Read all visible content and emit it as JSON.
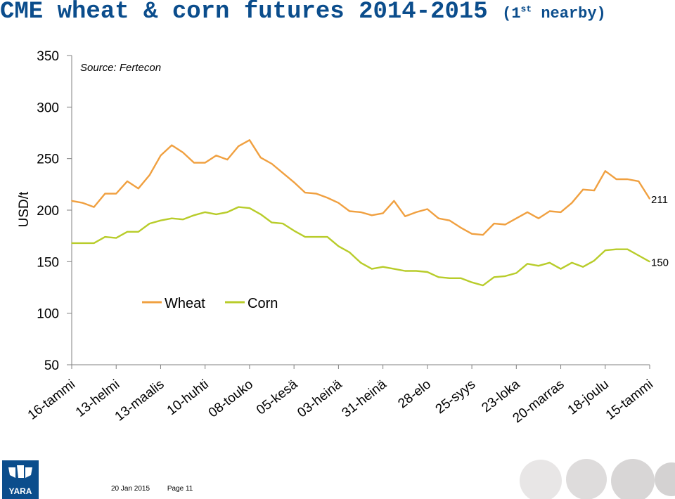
{
  "title": {
    "main": "CME wheat & corn futures 2014-2015",
    "paren_open": "(1",
    "sup": "st",
    "rest": " nearby)"
  },
  "footer": {
    "date": "20 Jan 2015",
    "page": "Page 11"
  },
  "logo": {
    "text": "YARA"
  },
  "colors": {
    "title": "#0b4d8c",
    "wheat": "#f0a040",
    "corn": "#b8cc2a",
    "axis": "#808080"
  },
  "chart_data": {
    "type": "line",
    "ylabel": "USD/t",
    "annotation": "Source: Fertecon",
    "ylim": [
      50,
      350
    ],
    "yticks": [
      50,
      100,
      150,
      200,
      250,
      300,
      350
    ],
    "xtick_labels": [
      "16-tammi",
      "13-helmi",
      "13-maalis",
      "10-huhti",
      "08-touko",
      "05-kesä",
      "03-heinä",
      "31-heinä",
      "28-elo",
      "25-syys",
      "23-loka",
      "20-marras",
      "18-joulu",
      "15-tammi"
    ],
    "legend_position": "center-left",
    "end_labels": [
      "211",
      "150"
    ],
    "series": [
      {
        "name": "Wheat",
        "color": "#f0a040",
        "values": [
          209,
          207,
          203,
          216,
          216,
          228,
          221,
          234,
          253,
          263,
          256,
          246,
          246,
          253,
          249,
          262,
          268,
          251,
          245,
          236,
          227,
          217,
          216,
          212,
          207,
          199,
          198,
          195,
          197,
          209,
          194,
          198,
          201,
          192,
          190,
          183,
          177,
          176,
          187,
          186,
          192,
          198,
          192,
          199,
          198,
          207,
          220,
          219,
          238,
          230,
          230,
          228,
          211
        ]
      },
      {
        "name": "Corn",
        "color": "#b8cc2a",
        "values": [
          168,
          168,
          168,
          174,
          173,
          179,
          179,
          187,
          190,
          192,
          191,
          195,
          198,
          196,
          198,
          203,
          202,
          196,
          188,
          187,
          180,
          174,
          174,
          174,
          165,
          159,
          149,
          143,
          145,
          143,
          141,
          141,
          140,
          135,
          134,
          134,
          130,
          127,
          135,
          136,
          139,
          148,
          146,
          149,
          143,
          149,
          145,
          151,
          161,
          162,
          162,
          156,
          150
        ]
      }
    ]
  }
}
